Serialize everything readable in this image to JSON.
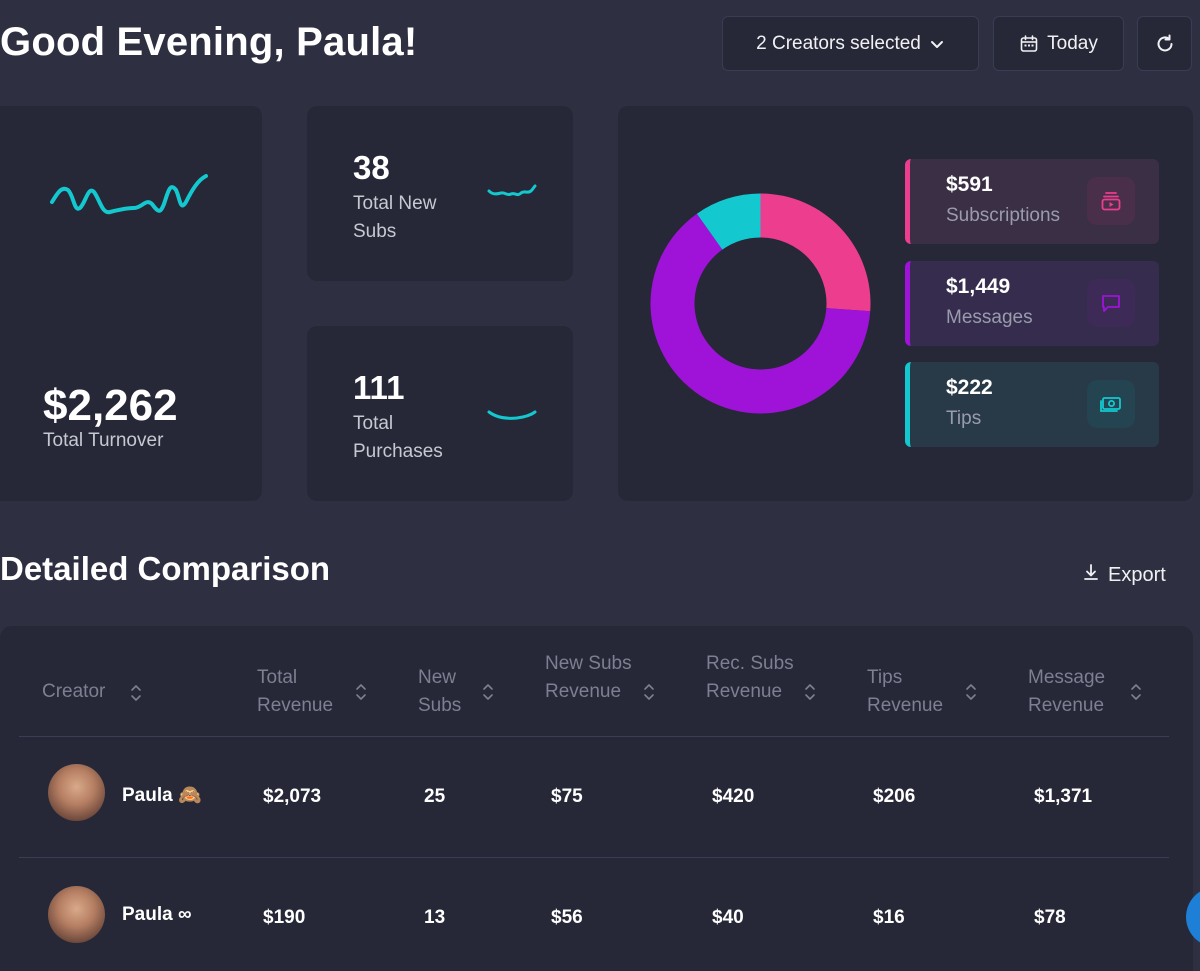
{
  "header": {
    "greeting": "Good Evening, Paula!",
    "creators_button": "2 Creators selected",
    "date_button": "Today"
  },
  "turnover": {
    "value": "$2,262",
    "label": "Total Turnover"
  },
  "new_subs": {
    "value": "38",
    "label": "Total New Subs"
  },
  "purchases": {
    "value": "111",
    "label": "Total Purchases"
  },
  "breakdown": {
    "items": [
      {
        "value": "$591",
        "label": "Subscriptions",
        "color": "#ec3d8f"
      },
      {
        "value": "$1,449",
        "label": "Messages",
        "color": "#9f13d8"
      },
      {
        "value": "$222",
        "label": "Tips",
        "color": "#13c9cf"
      }
    ]
  },
  "chart_data": {
    "type": "pie",
    "categories": [
      "Subscriptions",
      "Messages",
      "Tips"
    ],
    "values": [
      591,
      1449,
      222
    ],
    "colors": [
      "#ec3d8f",
      "#9f13d8",
      "#13c9cf"
    ]
  },
  "comparison": {
    "title": "Detailed Comparison",
    "export_label": "Export",
    "columns": [
      "Creator",
      "Total Revenue",
      "New Subs",
      "New Subs Revenue",
      "Rec. Subs Revenue",
      "Tips Revenue",
      "Message Revenue"
    ],
    "rows": [
      {
        "creator": "Paula 🙈",
        "total": "$2,073",
        "new_subs": "25",
        "new_subs_rev": "$75",
        "rec_subs_rev": "$420",
        "tips_rev": "$206",
        "msg_rev": "$1,371"
      },
      {
        "creator": "Paula ∞",
        "total": "$190",
        "new_subs": "13",
        "new_subs_rev": "$56",
        "rec_subs_rev": "$40",
        "tips_rev": "$16",
        "msg_rev": "$78"
      }
    ]
  },
  "colors": {
    "background": "#2e3042",
    "card": "#262837",
    "accent_teal": "#13c9cf",
    "accent_pink": "#ec3d8f",
    "accent_purple": "#9f13d8"
  }
}
